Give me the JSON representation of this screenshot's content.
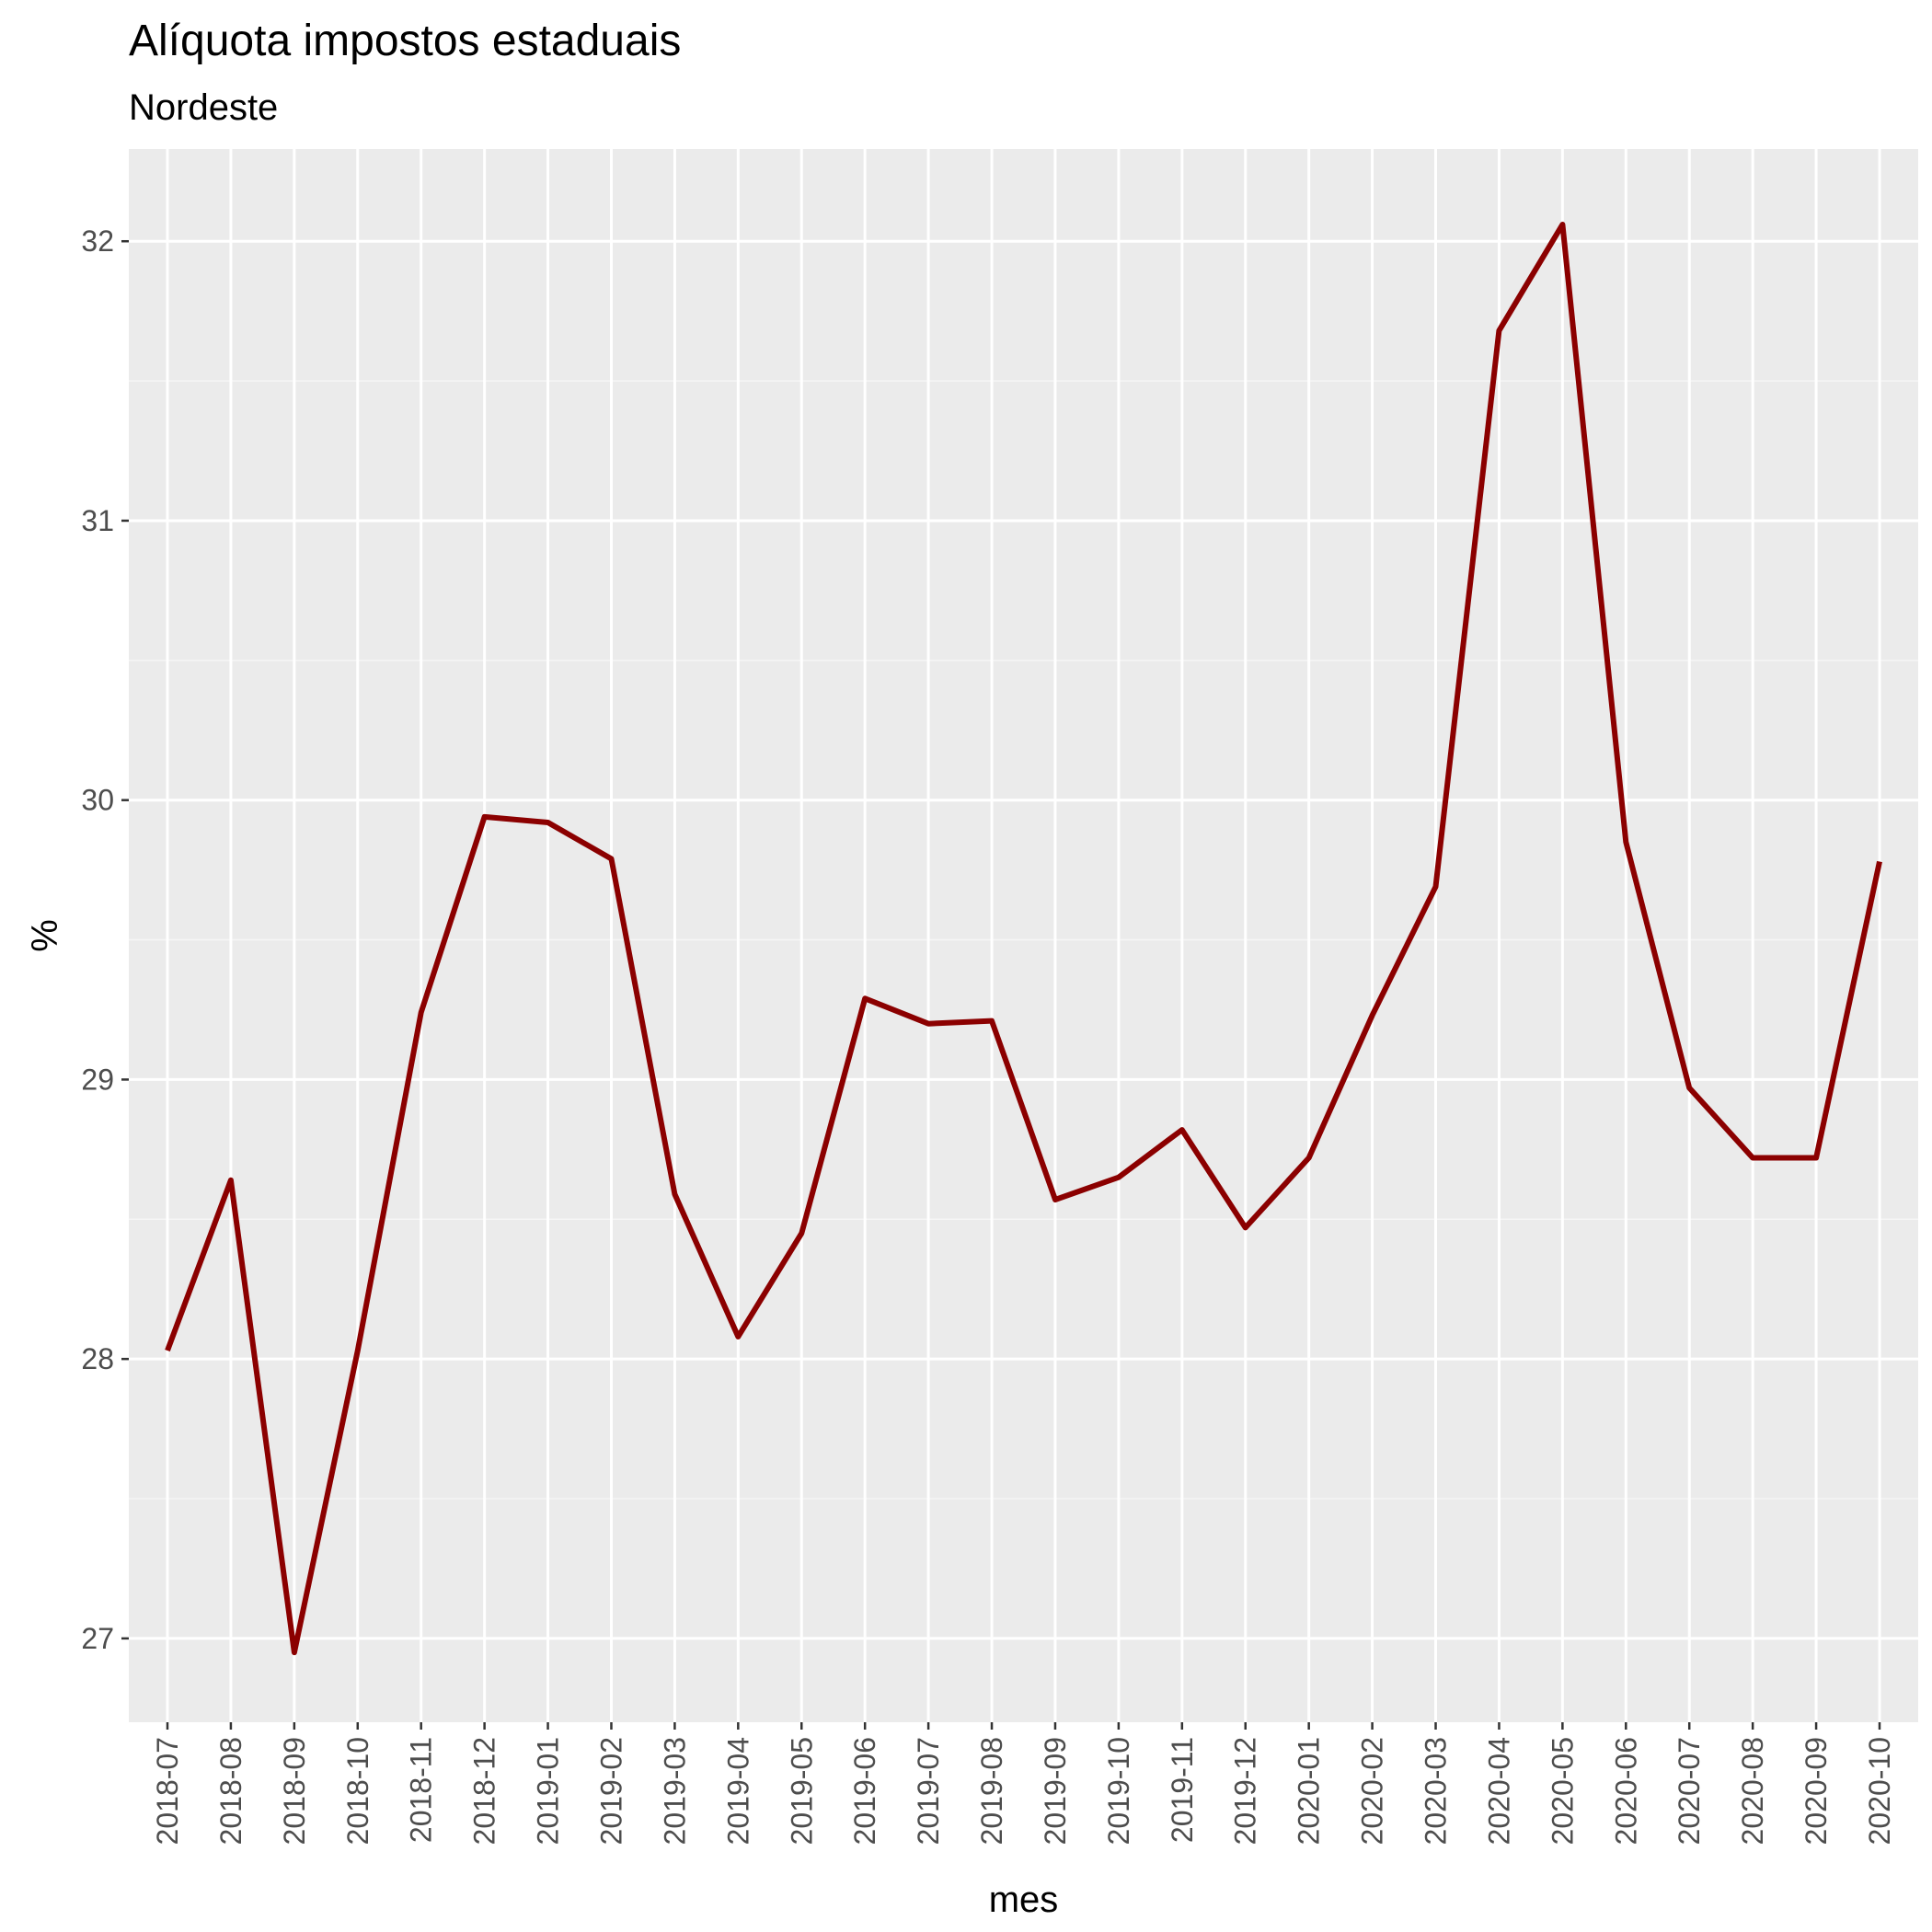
{
  "chart_data": {
    "type": "line",
    "title": "Alíquota impostos estaduais",
    "subtitle": "Nordeste",
    "xlabel": "mes",
    "ylabel": "%",
    "x": [
      "2018-07",
      "2018-08",
      "2018-09",
      "2018-10",
      "2018-11",
      "2018-12",
      "2019-01",
      "2019-02",
      "2019-03",
      "2019-04",
      "2019-05",
      "2019-06",
      "2019-07",
      "2019-08",
      "2019-09",
      "2019-10",
      "2019-11",
      "2019-12",
      "2020-01",
      "2020-02",
      "2020-03",
      "2020-04",
      "2020-05",
      "2020-06",
      "2020-07",
      "2020-08",
      "2020-09",
      "2020-10"
    ],
    "series": [
      {
        "values": [
          28.03,
          28.64,
          26.95,
          28.03,
          29.24,
          29.94,
          29.92,
          29.79,
          28.59,
          28.08,
          28.45,
          29.29,
          29.2,
          29.21,
          28.57,
          28.65,
          28.82,
          28.47,
          28.72,
          29.23,
          29.69,
          31.68,
          32.06,
          29.85,
          28.97,
          28.72,
          28.72,
          29.78
        ]
      }
    ],
    "yticks": [
      27,
      28,
      29,
      30,
      31,
      32
    ],
    "ylim": [
      26.7,
      32.33
    ],
    "grid": true,
    "legend": "none",
    "colors": {
      "line": "#8B0000",
      "panel_background": "#EBEBEB",
      "grid_major": "#FFFFFF",
      "grid_minor": "#F5F5F5",
      "tick_text": "#4D4D4D",
      "tick_mark": "#333333"
    }
  }
}
